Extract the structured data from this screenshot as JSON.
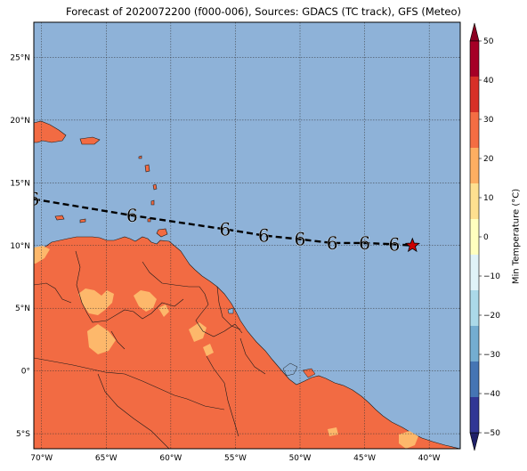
{
  "title": "Forecast of 2020072200 (f000-006), Sources: GDACS (TC track), GFS (Meteo)",
  "map": {
    "lon_range": [
      -70.6,
      -37.6
    ],
    "lat_range": [
      -6.2,
      27.8
    ],
    "lon_ticks": [
      {
        "value": -70,
        "label": "70°W"
      },
      {
        "value": -65,
        "label": "65°W"
      },
      {
        "value": -60,
        "label": "60°W"
      },
      {
        "value": -55,
        "label": "55°W"
      },
      {
        "value": -50,
        "label": "50°W"
      },
      {
        "value": -45,
        "label": "45°W"
      },
      {
        "value": -40,
        "label": "40°W"
      }
    ],
    "lat_ticks": [
      {
        "value": 25,
        "label": "25°N"
      },
      {
        "value": 20,
        "label": "20°N"
      },
      {
        "value": 15,
        "label": "15°N"
      },
      {
        "value": 10,
        "label": "10°N"
      },
      {
        "value": 5,
        "label": "5°N"
      },
      {
        "value": 0,
        "label": "0°"
      },
      {
        "value": -5,
        "label": "5°S"
      }
    ],
    "colors": {
      "ocean": "#8eb2d8",
      "land": "#f26b43",
      "land_warm": "#fdb86b",
      "coast": "#1a1a1a"
    },
    "track": {
      "style": "dashed",
      "points": [
        {
          "lon": -70.6,
          "lat": 13.7
        },
        {
          "lon": -63.0,
          "lat": 12.4
        },
        {
          "lon": -55.8,
          "lat": 11.3
        },
        {
          "lon": -52.8,
          "lat": 10.8
        },
        {
          "lon": -50.0,
          "lat": 10.5
        },
        {
          "lon": -47.5,
          "lat": 10.2
        },
        {
          "lon": -45.0,
          "lat": 10.2
        },
        {
          "lon": -42.7,
          "lat": 10.1
        },
        {
          "lon": -41.3,
          "lat": 10.0
        }
      ],
      "symbols": [
        {
          "lon": -70.6,
          "lat": 13.7
        },
        {
          "lon": -63.0,
          "lat": 12.4
        },
        {
          "lon": -55.8,
          "lat": 11.3
        },
        {
          "lon": -52.8,
          "lat": 10.8
        },
        {
          "lon": -50.0,
          "lat": 10.5
        },
        {
          "lon": -47.5,
          "lat": 10.2
        },
        {
          "lon": -45.0,
          "lat": 10.2
        },
        {
          "lon": -42.7,
          "lat": 10.1
        }
      ],
      "symbol_glyph": "6",
      "current_position": {
        "lon": -41.3,
        "lat": 10.0,
        "marker": "star-icon",
        "color": "#cc0000"
      }
    }
  },
  "colorbar": {
    "label": "Min Temperature (°C)",
    "ticks": [
      "50",
      "40",
      "30",
      "20",
      "10",
      "0",
      "−10",
      "−20",
      "−30",
      "−40",
      "−50"
    ],
    "bands": [
      "#a50026",
      "#d73027",
      "#f46d43",
      "#fdae61",
      "#fee090",
      "#ffffbf",
      "#e0f3f8",
      "#abd9e9",
      "#74add1",
      "#4575b4",
      "#313695"
    ],
    "over_color": "#8b0021",
    "under_color": "#1f2068",
    "highlight_range": [
      20,
      30
    ]
  }
}
